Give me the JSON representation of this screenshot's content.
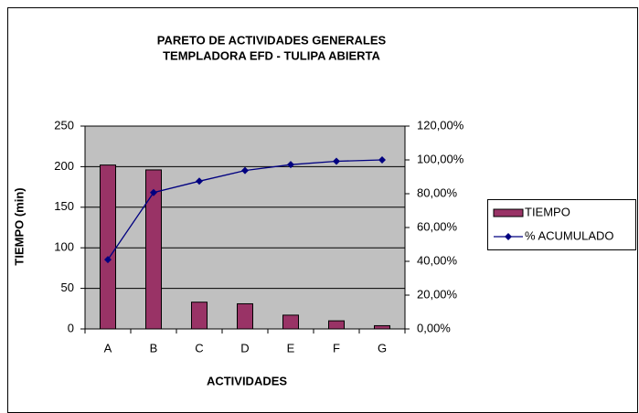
{
  "chart_data": {
    "type": "bar",
    "title": "PARETO DE ACTIVIDADES  GENERALES",
    "subtitle": "TEMPLADORA EFD - TULIPA   ABIERTA",
    "x_label": "ACTIVIDADES",
    "y_label": "TIEMPO (min)",
    "categories": [
      "A",
      "B",
      "C",
      "D",
      "E",
      "F",
      "G"
    ],
    "series": [
      {
        "name": "TIEMPO",
        "type": "bar",
        "color": "#993366",
        "values": [
          202,
          196,
          33,
          31,
          17,
          10,
          4
        ]
      },
      {
        "name": "% ACUMULADO",
        "type": "line",
        "axis": "y2",
        "color": "#000080",
        "values": [
          41,
          80.7,
          87.4,
          93.7,
          97.2,
          99.2,
          100
        ]
      }
    ],
    "ylim": [
      0,
      250
    ],
    "yticks": [
      0,
      50,
      100,
      150,
      200,
      250
    ],
    "y2lim": [
      0,
      120
    ],
    "y2ticks": [
      {
        "value": 0,
        "label": "0,00%"
      },
      {
        "value": 20,
        "label": "20,00%"
      },
      {
        "value": 40,
        "label": "40,00%"
      },
      {
        "value": 60,
        "label": "60,00%"
      },
      {
        "value": 80,
        "label": "80,00%"
      },
      {
        "value": 100,
        "label": "100,00%"
      },
      {
        "value": 120,
        "label": "120,00%"
      }
    ],
    "grid": true,
    "plot_background": "#c0c0c0",
    "legend": "right"
  }
}
